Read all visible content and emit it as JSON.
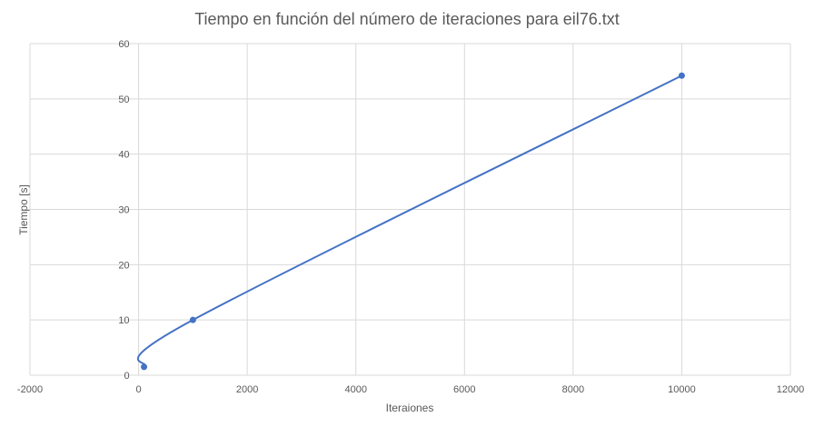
{
  "chart_data": {
    "type": "scatter",
    "title": "Tiempo en función del número de iteraciones para eil76.txt",
    "xlabel": "Iteraiones",
    "ylabel": "Tiempo [s]",
    "xlim": [
      -2000,
      12000
    ],
    "ylim": [
      0,
      60
    ],
    "x_ticks": [
      -2000,
      0,
      2000,
      4000,
      6000,
      8000,
      10000,
      12000
    ],
    "y_ticks": [
      0,
      10,
      20,
      30,
      40,
      50,
      60
    ],
    "x_tick_labels": [
      "-2000",
      "0",
      "2000",
      "4000",
      "6000",
      "8000",
      "10000",
      "12000"
    ],
    "y_tick_labels": [
      "0",
      "10",
      "20",
      "30",
      "40",
      "50",
      "60"
    ],
    "grid": true,
    "smooth": true,
    "series": [
      {
        "name": "Tiempo",
        "color": "#4472c4",
        "x": [
          100,
          1000,
          10000
        ],
        "y": [
          1.5,
          10,
          54.2
        ]
      }
    ]
  }
}
